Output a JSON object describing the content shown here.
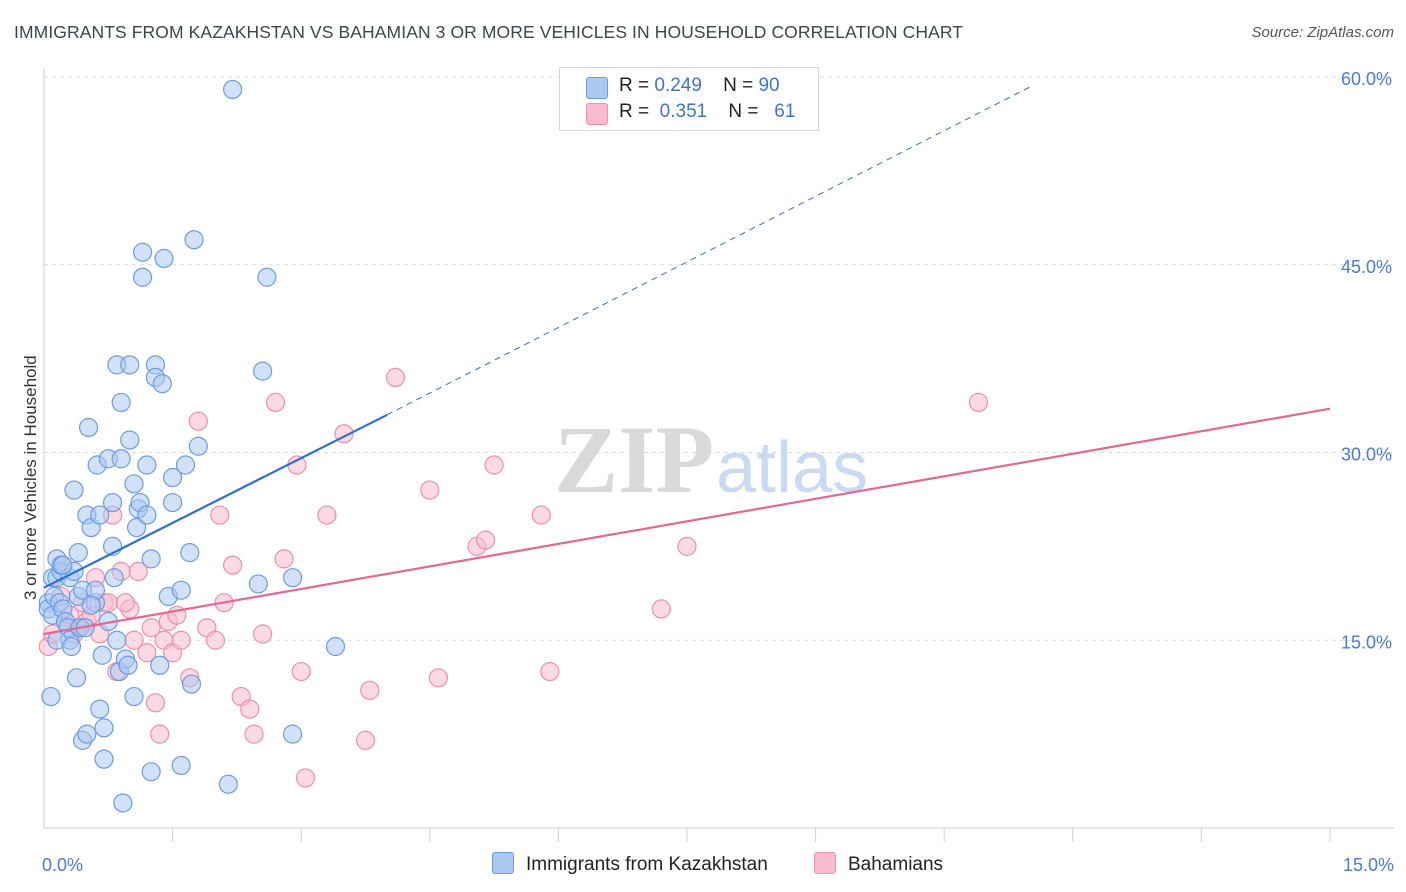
{
  "header": {
    "title": "IMMIGRANTS FROM KAZAKHSTAN VS BAHAMIAN 3 OR MORE VEHICLES IN HOUSEHOLD CORRELATION CHART",
    "source": "Source: ZipAtlas.com"
  },
  "watermark": {
    "zip": "ZIP",
    "atlas": "atlas"
  },
  "legend": {
    "items": [
      {
        "r_label": "R =",
        "r_value": "0.249",
        "n_label": "N =",
        "n_value": "90",
        "color": "#aac8f2"
      },
      {
        "r_label": "R =",
        "r_value": "0.351",
        "n_label": "N =",
        "n_value": "61",
        "color": "#f7bccd"
      }
    ]
  },
  "colors": {
    "blue_fill": "#aac8f2",
    "blue_stroke": "#6e9be0",
    "blue_line": "#2f6fcf",
    "pink_fill": "#f7bccd",
    "pink_stroke": "#ec8fab",
    "pink_line": "#e36893",
    "tick_text": "#4a7bd0",
    "grid": "#dcdcdc"
  },
  "chart_data": {
    "type": "scatter",
    "title": "IMMIGRANTS FROM KAZAKHSTAN VS BAHAMIAN 3 OR MORE VEHICLES IN HOUSEHOLD CORRELATION CHART",
    "xlabel": "",
    "ylabel": "3 or more Vehicles in Household",
    "xlim": [
      0,
      15
    ],
    "ylim": [
      0,
      60
    ],
    "x_tick_labels": [
      "0.0%",
      "15.0%"
    ],
    "y_tick_labels": [
      "15.0%",
      "30.0%",
      "45.0%",
      "60.0%"
    ],
    "y_ticks": [
      15,
      30,
      45,
      60
    ],
    "grid": true,
    "legend_position": "top-center",
    "series": [
      {
        "name": "Immigrants from Kazakhstan",
        "color": "#aac8f2",
        "r": 0.249,
        "n": 90,
        "trend": {
          "x": [
            0.0,
            4.0
          ],
          "y": [
            19.2,
            33.0
          ],
          "dashed_extension_to": [
            11.5,
            59.2
          ]
        },
        "points": [
          [
            0.05,
            18.0
          ],
          [
            0.05,
            17.5
          ],
          [
            0.08,
            10.5
          ],
          [
            0.1,
            20.0
          ],
          [
            0.1,
            17.0
          ],
          [
            0.12,
            18.5
          ],
          [
            0.15,
            20.0
          ],
          [
            0.15,
            21.5
          ],
          [
            0.18,
            18.0
          ],
          [
            0.2,
            20.5
          ],
          [
            0.2,
            21.0
          ],
          [
            0.22,
            17.5
          ],
          [
            0.25,
            16.5
          ],
          [
            0.28,
            16.0
          ],
          [
            0.3,
            20.0
          ],
          [
            0.3,
            15.0
          ],
          [
            0.35,
            27.0
          ],
          [
            0.35,
            20.5
          ],
          [
            0.38,
            12.0
          ],
          [
            0.4,
            18.5
          ],
          [
            0.42,
            16.0
          ],
          [
            0.45,
            19.0
          ],
          [
            0.45,
            7.0
          ],
          [
            0.5,
            7.5
          ],
          [
            0.5,
            25.0
          ],
          [
            0.52,
            32.0
          ],
          [
            0.55,
            24.0
          ],
          [
            0.6,
            18.0
          ],
          [
            0.62,
            29.0
          ],
          [
            0.65,
            25.0
          ],
          [
            0.65,
            9.5
          ],
          [
            0.7,
            8.0
          ],
          [
            0.7,
            5.5
          ],
          [
            0.75,
            29.5
          ],
          [
            0.75,
            16.5
          ],
          [
            0.8,
            26.0
          ],
          [
            0.8,
            22.5
          ],
          [
            0.82,
            20.0
          ],
          [
            0.85,
            37.0
          ],
          [
            0.85,
            15.0
          ],
          [
            0.88,
            12.5
          ],
          [
            0.9,
            34.0
          ],
          [
            0.9,
            29.5
          ],
          [
            0.92,
            2.0
          ],
          [
            0.95,
            13.5
          ],
          [
            0.98,
            13.0
          ],
          [
            1.0,
            31.0
          ],
          [
            1.0,
            37.0
          ],
          [
            1.05,
            10.5
          ],
          [
            1.05,
            27.5
          ],
          [
            1.08,
            24.0
          ],
          [
            1.1,
            25.5
          ],
          [
            1.12,
            26.0
          ],
          [
            1.15,
            46.0
          ],
          [
            1.15,
            44.0
          ],
          [
            1.2,
            25.0
          ],
          [
            1.2,
            29.0
          ],
          [
            1.25,
            4.5
          ],
          [
            1.25,
            21.5
          ],
          [
            1.3,
            37.0
          ],
          [
            1.3,
            36.0
          ],
          [
            1.35,
            13.0
          ],
          [
            1.38,
            35.5
          ],
          [
            1.4,
            45.5
          ],
          [
            1.45,
            18.5
          ],
          [
            1.5,
            26.0
          ],
          [
            1.5,
            28.0
          ],
          [
            1.6,
            19.0
          ],
          [
            1.6,
            5.0
          ],
          [
            1.65,
            29.0
          ],
          [
            1.7,
            22.0
          ],
          [
            1.72,
            11.5
          ],
          [
            1.75,
            47.0
          ],
          [
            2.15,
            3.5
          ],
          [
            2.2,
            59.0
          ],
          [
            2.5,
            19.5
          ],
          [
            2.55,
            36.5
          ],
          [
            2.6,
            44.0
          ],
          [
            2.9,
            7.5
          ],
          [
            2.9,
            20.0
          ],
          [
            3.4,
            14.5
          ],
          [
            0.6,
            19.0
          ],
          [
            0.48,
            16.0
          ],
          [
            0.15,
            15.0
          ],
          [
            0.32,
            14.5
          ],
          [
            0.68,
            13.8
          ],
          [
            0.22,
            21.0
          ],
          [
            0.55,
            17.8
          ],
          [
            1.8,
            30.5
          ],
          [
            0.4,
            22.0
          ]
        ]
      },
      {
        "name": "Bahamians",
        "color": "#f7bccd",
        "r": 0.351,
        "n": 61,
        "trend": {
          "x": [
            0.0,
            15.0
          ],
          "y": [
            15.5,
            33.5
          ]
        },
        "points": [
          [
            0.05,
            14.5
          ],
          [
            0.1,
            15.5
          ],
          [
            0.2,
            18.5
          ],
          [
            0.25,
            16.5
          ],
          [
            0.3,
            17.0
          ],
          [
            0.35,
            15.5
          ],
          [
            0.4,
            16.0
          ],
          [
            0.45,
            18.0
          ],
          [
            0.5,
            16.5
          ],
          [
            0.55,
            17.0
          ],
          [
            0.6,
            20.0
          ],
          [
            0.65,
            15.5
          ],
          [
            0.7,
            18.0
          ],
          [
            0.75,
            18.0
          ],
          [
            0.8,
            25.0
          ],
          [
            0.85,
            12.5
          ],
          [
            0.9,
            20.5
          ],
          [
            1.0,
            17.5
          ],
          [
            1.05,
            15.0
          ],
          [
            1.1,
            20.5
          ],
          [
            1.2,
            14.0
          ],
          [
            1.25,
            16.0
          ],
          [
            1.3,
            10.0
          ],
          [
            1.35,
            7.5
          ],
          [
            1.4,
            15.0
          ],
          [
            1.45,
            16.5
          ],
          [
            1.5,
            14.0
          ],
          [
            1.55,
            17.0
          ],
          [
            1.6,
            15.0
          ],
          [
            1.7,
            12.0
          ],
          [
            1.8,
            32.5
          ],
          [
            1.9,
            16.0
          ],
          [
            2.0,
            15.0
          ],
          [
            2.05,
            25.0
          ],
          [
            2.1,
            18.0
          ],
          [
            2.2,
            21.0
          ],
          [
            2.3,
            10.5
          ],
          [
            2.4,
            9.5
          ],
          [
            2.45,
            7.5
          ],
          [
            2.55,
            15.5
          ],
          [
            2.7,
            34.0
          ],
          [
            2.8,
            21.5
          ],
          [
            2.95,
            29.0
          ],
          [
            3.0,
            12.5
          ],
          [
            3.05,
            4.0
          ],
          [
            3.3,
            25.0
          ],
          [
            3.5,
            31.5
          ],
          [
            3.75,
            7.0
          ],
          [
            3.8,
            11.0
          ],
          [
            4.1,
            36.0
          ],
          [
            4.5,
            27.0
          ],
          [
            4.6,
            12.0
          ],
          [
            5.05,
            22.5
          ],
          [
            5.15,
            23.0
          ],
          [
            5.25,
            29.0
          ],
          [
            5.8,
            25.0
          ],
          [
            5.9,
            12.5
          ],
          [
            7.2,
            17.5
          ],
          [
            7.5,
            22.5
          ],
          [
            10.9,
            34.0
          ],
          [
            0.95,
            18.0
          ]
        ]
      }
    ]
  },
  "bottom_legend": {
    "items": [
      {
        "label": "Immigrants from Kazakhstan",
        "color": "#aac8f2"
      },
      {
        "label": "Bahamians",
        "color": "#f7bccd"
      }
    ]
  }
}
